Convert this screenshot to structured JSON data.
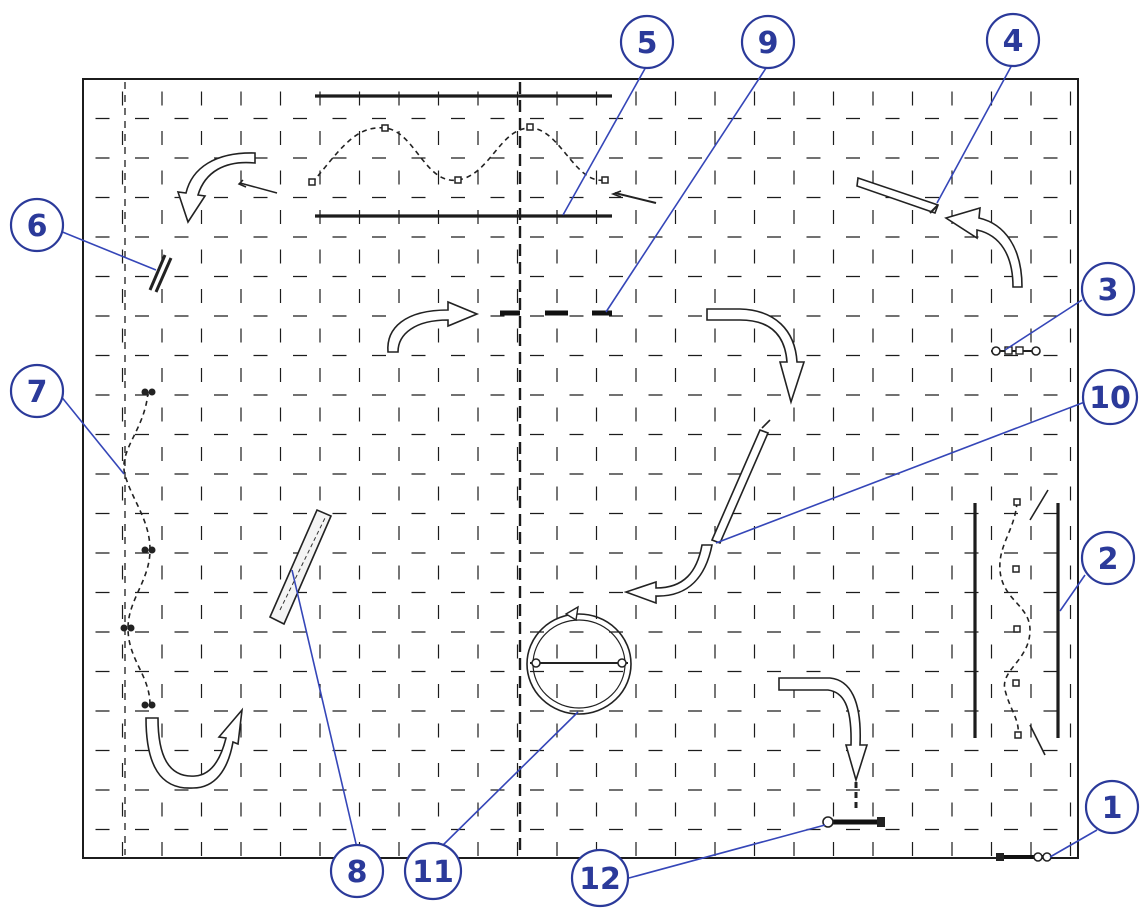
{
  "callouts": [
    {
      "id": "callout-1",
      "label": "1"
    },
    {
      "id": "callout-2",
      "label": "2"
    },
    {
      "id": "callout-3",
      "label": "3"
    },
    {
      "id": "callout-4",
      "label": "4"
    },
    {
      "id": "callout-5",
      "label": "5"
    },
    {
      "id": "callout-6",
      "label": "6"
    },
    {
      "id": "callout-7",
      "label": "7"
    },
    {
      "id": "callout-8",
      "label": "8"
    },
    {
      "id": "callout-9",
      "label": "9"
    },
    {
      "id": "callout-10",
      "label": "10"
    },
    {
      "id": "callout-11",
      "label": "11"
    },
    {
      "id": "callout-12",
      "label": "12"
    }
  ],
  "colors": {
    "callout": "#2b3a9a",
    "grid": "#1c1c1c",
    "background": "#ffffff"
  }
}
